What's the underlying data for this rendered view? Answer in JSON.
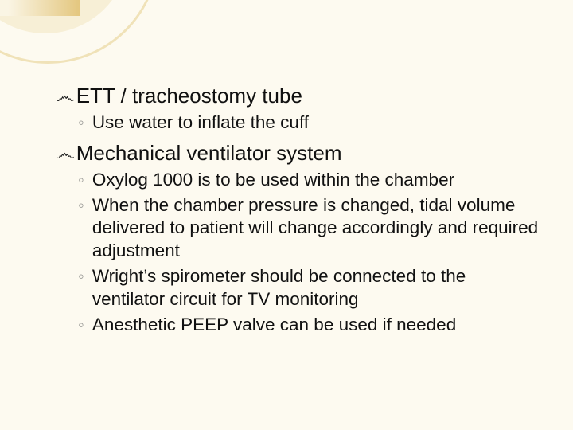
{
  "background_color": "#fdfaf0",
  "accent_arc_color": "#f0e2b8",
  "accent_fill_color": "#f7efd6",
  "gold_bar_color": "#d4a638",
  "main_bullet_glyph": "෴",
  "sub_bullet_glyph": "◦",
  "main_fontsize": 26,
  "sub_fontsize": 22.5,
  "text_color": "#111111",
  "sub_bullet_color": "#9c9c98",
  "items": [
    {
      "title": "ETT / tracheostomy tube",
      "subs": [
        "Use water to inflate the cuff"
      ]
    },
    {
      "title": "Mechanical ventilator system",
      "subs": [
        "Oxylog 1000 is to be used within the chamber",
        "When the chamber pressure is changed, tidal volume delivered to patient will change accordingly and required adjustment",
        "Wright’s spirometer should be connected to the ventilator circuit for TV monitoring",
        "Anesthetic PEEP valve can be used if needed"
      ]
    }
  ]
}
